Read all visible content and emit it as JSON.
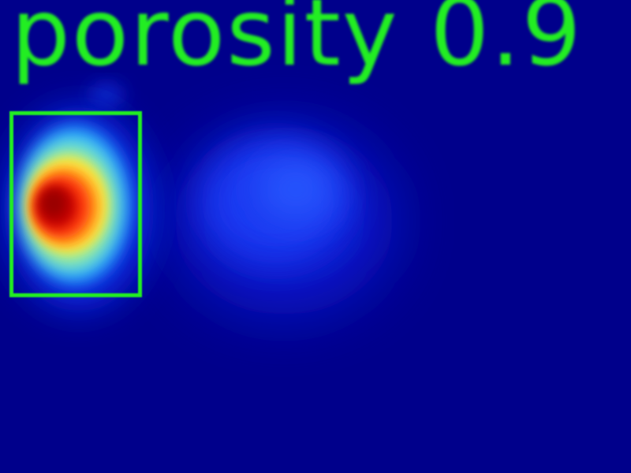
{
  "detection": {
    "label": "porosity 0.9",
    "box_color": "#22ee22",
    "label_color": "#22ee22"
  },
  "heatmap": {
    "colormap": "jet",
    "background_color": "#00008b"
  }
}
